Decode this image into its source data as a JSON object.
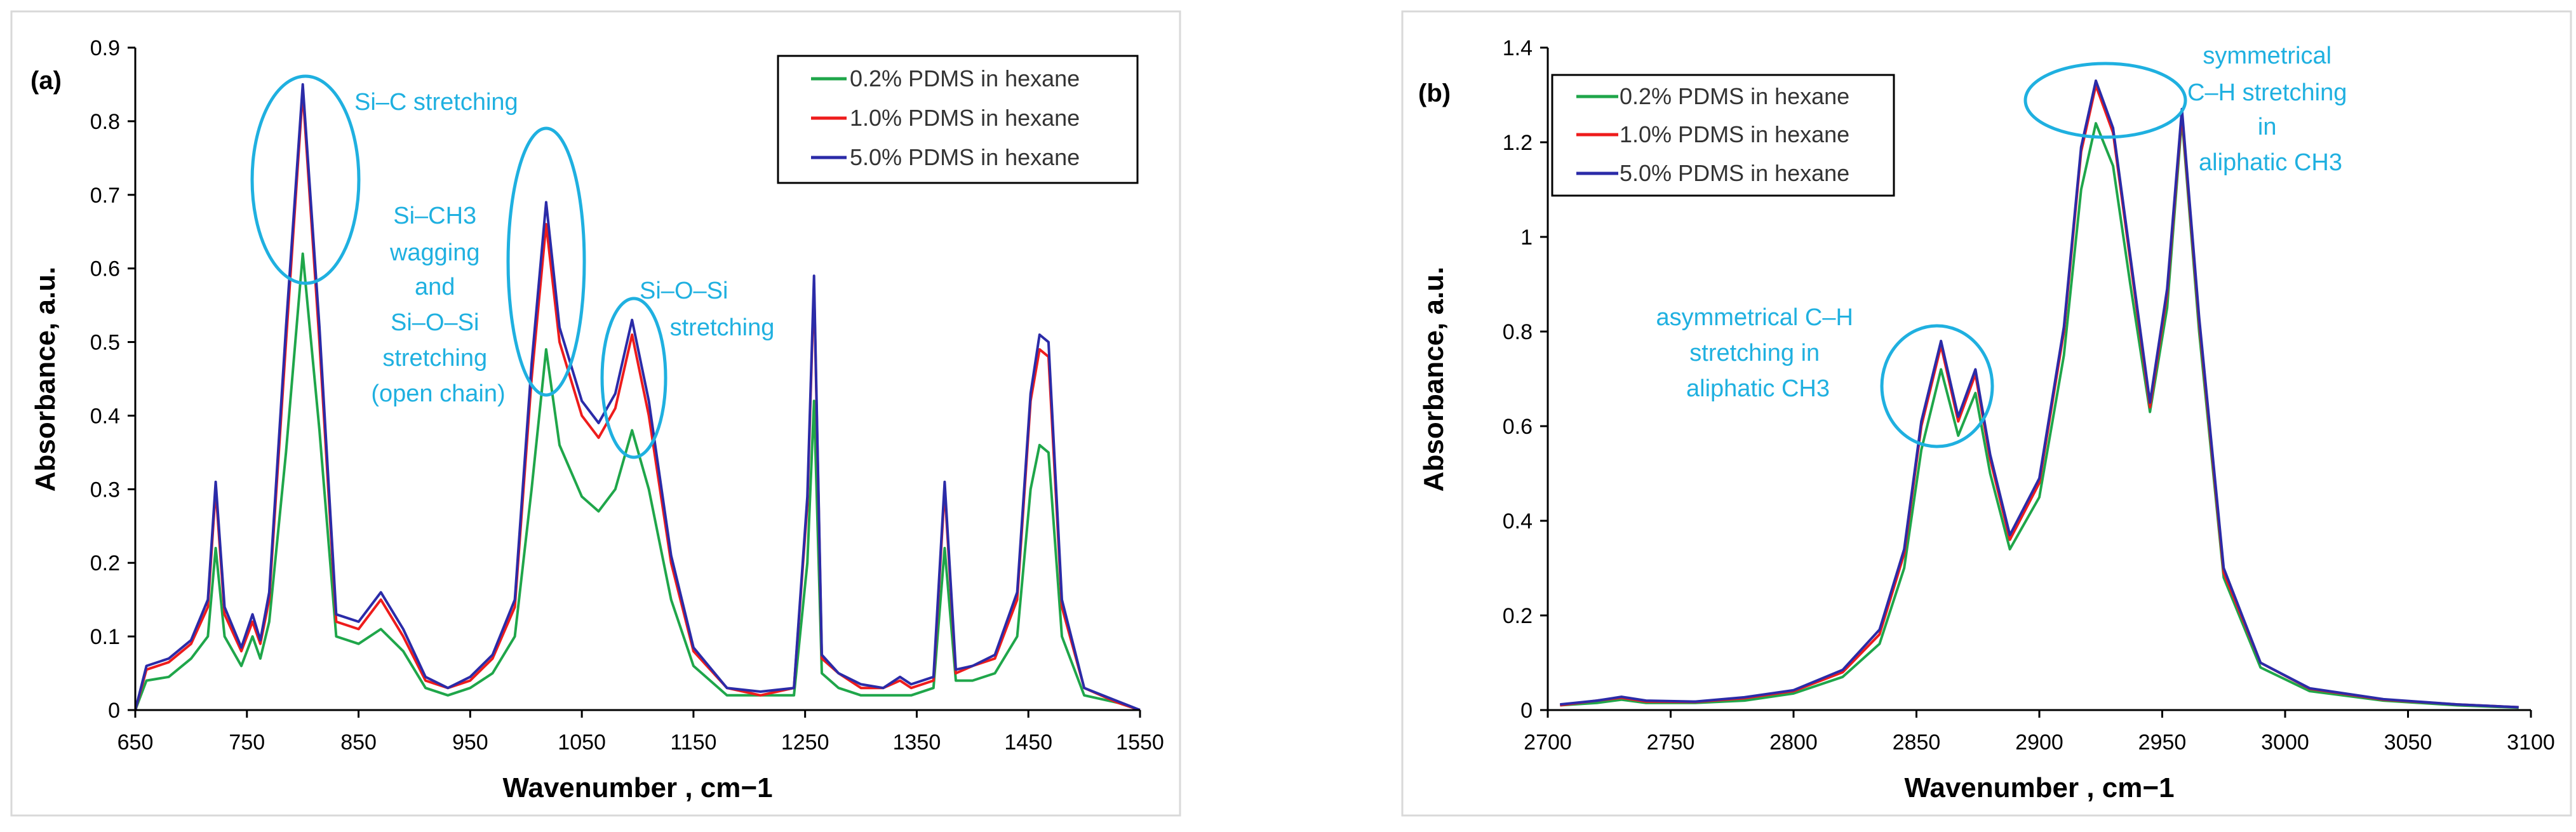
{
  "colors": {
    "c02": "#1fa64a",
    "c10": "#ee1c1c",
    "c50": "#2b2ba8",
    "annot": "#1fb0e0",
    "axis": "#000000",
    "frame": "#d9d9d9"
  },
  "chart_data": [
    {
      "type": "line",
      "panel_label": "(a)",
      "xlabel": "Wavenumber , cm−1",
      "ylabel": "Absorbance, a.u.",
      "xlim": [
        650,
        1550
      ],
      "ylim": [
        0,
        0.9
      ],
      "xticks": [
        "650",
        "750",
        "850",
        "950",
        "1050",
        "1150",
        "1250",
        "1350",
        "1450",
        "1550"
      ],
      "yticks": [
        "0",
        "0.1",
        "0.2",
        "0.3",
        "0.4",
        "0.5",
        "0.6",
        "0.7",
        "0.8",
        "0.9"
      ],
      "grid": false,
      "legend_position": "top-right",
      "series": [
        {
          "name": "0.2% PDMS in hexane",
          "color_key": "c02",
          "x": [
            650,
            660,
            680,
            700,
            715,
            722,
            730,
            745,
            755,
            762,
            770,
            785,
            800,
            815,
            830,
            850,
            870,
            890,
            910,
            930,
            950,
            970,
            990,
            1005,
            1018,
            1030,
            1050,
            1065,
            1080,
            1095,
            1110,
            1130,
            1150,
            1180,
            1210,
            1240,
            1252,
            1258,
            1265,
            1280,
            1300,
            1320,
            1335,
            1345,
            1365,
            1375,
            1385,
            1400,
            1420,
            1440,
            1452,
            1460,
            1468,
            1480,
            1500,
            1530,
            1550
          ],
          "y": [
            0.0,
            0.04,
            0.045,
            0.07,
            0.1,
            0.22,
            0.1,
            0.06,
            0.1,
            0.07,
            0.12,
            0.35,
            0.62,
            0.38,
            0.1,
            0.09,
            0.11,
            0.08,
            0.03,
            0.02,
            0.03,
            0.05,
            0.1,
            0.3,
            0.49,
            0.36,
            0.29,
            0.27,
            0.3,
            0.38,
            0.3,
            0.15,
            0.06,
            0.02,
            0.02,
            0.02,
            0.2,
            0.42,
            0.05,
            0.03,
            0.02,
            0.02,
            0.02,
            0.02,
            0.03,
            0.22,
            0.04,
            0.04,
            0.05,
            0.1,
            0.3,
            0.36,
            0.35,
            0.1,
            0.02,
            0.01,
            0.0
          ]
        },
        {
          "name": "1.0% PDMS in hexane",
          "color_key": "c10",
          "x": [
            650,
            660,
            680,
            700,
            715,
            722,
            730,
            745,
            755,
            762,
            770,
            785,
            800,
            815,
            830,
            850,
            870,
            890,
            910,
            930,
            950,
            970,
            990,
            1005,
            1018,
            1030,
            1050,
            1065,
            1080,
            1095,
            1110,
            1130,
            1150,
            1180,
            1210,
            1240,
            1252,
            1258,
            1265,
            1280,
            1300,
            1320,
            1335,
            1345,
            1365,
            1375,
            1385,
            1400,
            1420,
            1440,
            1452,
            1460,
            1468,
            1480,
            1500,
            1530,
            1550
          ],
          "y": [
            0.0,
            0.055,
            0.065,
            0.09,
            0.14,
            0.3,
            0.13,
            0.08,
            0.12,
            0.09,
            0.15,
            0.5,
            0.84,
            0.5,
            0.12,
            0.11,
            0.15,
            0.1,
            0.04,
            0.03,
            0.04,
            0.07,
            0.14,
            0.45,
            0.66,
            0.5,
            0.4,
            0.37,
            0.41,
            0.51,
            0.4,
            0.2,
            0.08,
            0.03,
            0.02,
            0.03,
            0.28,
            0.58,
            0.07,
            0.05,
            0.03,
            0.03,
            0.04,
            0.03,
            0.04,
            0.3,
            0.05,
            0.06,
            0.07,
            0.15,
            0.42,
            0.49,
            0.48,
            0.14,
            0.03,
            0.01,
            0.0
          ]
        },
        {
          "name": "5.0% PDMS in hexane",
          "color_key": "c50",
          "x": [
            650,
            660,
            680,
            700,
            715,
            722,
            730,
            745,
            755,
            762,
            770,
            785,
            800,
            815,
            830,
            850,
            870,
            890,
            910,
            930,
            950,
            970,
            990,
            1005,
            1018,
            1030,
            1050,
            1065,
            1080,
            1095,
            1110,
            1130,
            1150,
            1180,
            1210,
            1240,
            1252,
            1258,
            1265,
            1280,
            1300,
            1320,
            1335,
            1345,
            1365,
            1375,
            1385,
            1400,
            1420,
            1440,
            1452,
            1460,
            1468,
            1480,
            1500,
            1530,
            1550
          ],
          "y": [
            0.0,
            0.06,
            0.07,
            0.095,
            0.15,
            0.31,
            0.14,
            0.085,
            0.13,
            0.095,
            0.16,
            0.52,
            0.85,
            0.52,
            0.13,
            0.12,
            0.16,
            0.11,
            0.045,
            0.03,
            0.045,
            0.075,
            0.15,
            0.47,
            0.69,
            0.52,
            0.42,
            0.39,
            0.43,
            0.53,
            0.42,
            0.21,
            0.085,
            0.03,
            0.025,
            0.03,
            0.29,
            0.59,
            0.075,
            0.05,
            0.035,
            0.03,
            0.045,
            0.035,
            0.045,
            0.31,
            0.055,
            0.06,
            0.075,
            0.16,
            0.43,
            0.51,
            0.5,
            0.15,
            0.03,
            0.012,
            0.0
          ]
        }
      ],
      "annotations": [
        {
          "lines": [
            "Si–C stretching"
          ],
          "x": 800,
          "y": 0.82
        },
        {
          "lines": [
            "Si–CH3",
            "wagging",
            "and",
            "Si–O–Si",
            "stretching",
            "(open chain)"
          ],
          "x": 925,
          "y": 0.66
        },
        {
          "lines": [
            "Si–O–Si",
            "stretching"
          ],
          "x": 1150,
          "y": 0.56
        }
      ]
    },
    {
      "type": "line",
      "panel_label": "(b)",
      "xlabel": "Wavenumber , cm−1",
      "ylabel": "Absorbance, a.u.",
      "xlim": [
        2700,
        3100
      ],
      "ylim": [
        0,
        1.4
      ],
      "xticks": [
        "2700",
        "2750",
        "2800",
        "2850",
        "2900",
        "2950",
        "3000",
        "3050",
        "3100"
      ],
      "yticks": [
        "0",
        "0.2",
        "0.4",
        "0.6",
        "0.8",
        "1",
        "1.2",
        "1.4"
      ],
      "grid": false,
      "legend_position": "top-left",
      "series": [
        {
          "name": "0.2% PDMS in hexane",
          "color_key": "c02",
          "x": [
            2705,
            2720,
            2730,
            2740,
            2760,
            2780,
            2800,
            2820,
            2835,
            2845,
            2852,
            2860,
            2867,
            2874,
            2880,
            2888,
            2900,
            2910,
            2917,
            2923,
            2930,
            2937,
            2945,
            2952,
            2958,
            2965,
            2975,
            2990,
            3010,
            3040,
            3070,
            3095
          ],
          "y": [
            0.01,
            0.015,
            0.022,
            0.015,
            0.015,
            0.02,
            0.035,
            0.07,
            0.14,
            0.3,
            0.55,
            0.72,
            0.58,
            0.67,
            0.5,
            0.34,
            0.45,
            0.75,
            1.1,
            1.24,
            1.15,
            0.9,
            0.63,
            0.85,
            1.25,
            0.8,
            0.28,
            0.09,
            0.04,
            0.02,
            0.01,
            0.005
          ]
        },
        {
          "name": "1.0% PDMS in hexane",
          "color_key": "c10",
          "x": [
            2705,
            2720,
            2730,
            2740,
            2760,
            2780,
            2800,
            2820,
            2835,
            2845,
            2852,
            2860,
            2867,
            2874,
            2880,
            2888,
            2900,
            2910,
            2917,
            2923,
            2930,
            2937,
            2945,
            2952,
            2958,
            2965,
            2975,
            2990,
            3010,
            3040,
            3070,
            3095
          ],
          "y": [
            0.01,
            0.02,
            0.026,
            0.018,
            0.017,
            0.025,
            0.04,
            0.08,
            0.16,
            0.33,
            0.6,
            0.77,
            0.61,
            0.71,
            0.53,
            0.36,
            0.48,
            0.8,
            1.18,
            1.32,
            1.22,
            0.95,
            0.64,
            0.88,
            1.26,
            0.82,
            0.29,
            0.1,
            0.045,
            0.022,
            0.012,
            0.006
          ]
        },
        {
          "name": "5.0% PDMS in hexane",
          "color_key": "c50",
          "x": [
            2705,
            2720,
            2730,
            2740,
            2760,
            2780,
            2800,
            2820,
            2835,
            2845,
            2852,
            2860,
            2867,
            2874,
            2880,
            2888,
            2900,
            2910,
            2917,
            2923,
            2930,
            2937,
            2945,
            2952,
            2958,
            2965,
            2975,
            2990,
            3010,
            3040,
            3070,
            3095
          ],
          "y": [
            0.012,
            0.02,
            0.028,
            0.02,
            0.018,
            0.027,
            0.042,
            0.085,
            0.17,
            0.34,
            0.61,
            0.78,
            0.62,
            0.72,
            0.54,
            0.37,
            0.49,
            0.81,
            1.19,
            1.33,
            1.23,
            0.96,
            0.65,
            0.89,
            1.27,
            0.83,
            0.3,
            0.1,
            0.046,
            0.023,
            0.012,
            0.006
          ]
        }
      ],
      "annotations": [
        {
          "lines": [
            "asymmetrical C–H",
            "stretching in",
            "aliphatic CH3"
          ],
          "x": 2838,
          "y": 0.83
        },
        {
          "lines": [
            "symmetrical",
            "C–H stretching",
            "in",
            "aliphatic CH3"
          ],
          "x": 2965,
          "y": 1.38
        }
      ]
    }
  ]
}
